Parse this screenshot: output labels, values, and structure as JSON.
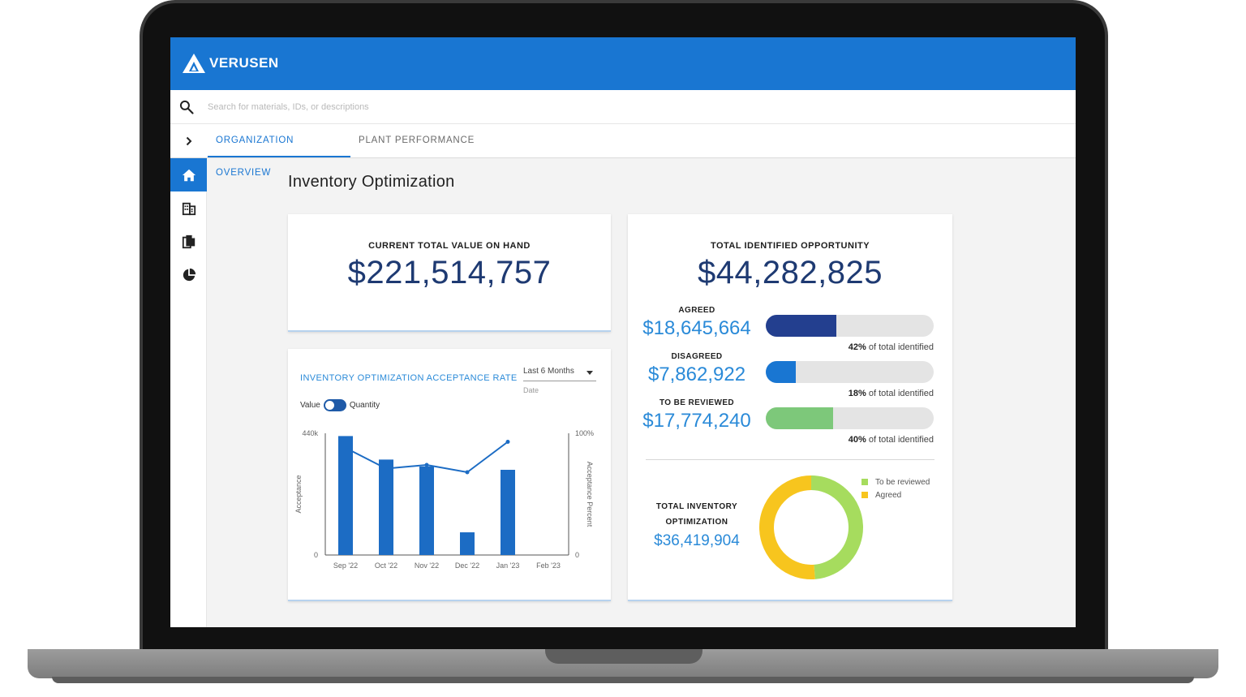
{
  "brand": {
    "name": "VERUSEN",
    "color": "#1976d2"
  },
  "search": {
    "placeholder": "Search for materials, IDs, or descriptions",
    "icon": "search-icon"
  },
  "tabs": [
    {
      "label": "ORGANIZATION OVERVIEW",
      "active": true
    },
    {
      "label": "PLANT PERFORMANCE",
      "active": false
    }
  ],
  "sidebar": {
    "items": [
      {
        "icon": "home-icon",
        "active": true
      },
      {
        "icon": "building-icon",
        "active": false
      },
      {
        "icon": "documents-icon",
        "active": false
      },
      {
        "icon": "pie-chart-icon",
        "active": false
      }
    ]
  },
  "page": {
    "title": "Inventory Optimization"
  },
  "value_card": {
    "label": "CURRENT TOTAL VALUE ON HAND",
    "value": "$221,514,757"
  },
  "opportunity": {
    "label": "TOTAL IDENTIFIED OPPORTUNITY",
    "value": "$44,282,825",
    "rows": [
      {
        "label": "AGREED",
        "value": "$18,645,664",
        "percent": 42,
        "percent_text": "42%",
        "note": " of total identified",
        "color": "#233f8f"
      },
      {
        "label": "DISAGREED",
        "value": "$7,862,922",
        "percent": 18,
        "percent_text": "18%",
        "note": " of total identified",
        "color": "#1976d2"
      },
      {
        "label": "TO BE REVIEWED",
        "value": "$17,774,240",
        "percent": 40,
        "percent_text": "40%",
        "note": " of total identified",
        "color": "#7dc87a"
      }
    ],
    "total_label_line1": "TOTAL INVENTORY",
    "total_label_line2": "OPTIMIZATION",
    "total_value": "$36,419,904",
    "legend": [
      {
        "label": "To be reviewed",
        "color": "#a6dc5e"
      },
      {
        "label": "Agreed",
        "color": "#f7c51e"
      }
    ]
  },
  "acceptance": {
    "title": "INVENTORY OPTIMIZATION ACCEPTANCE RATE",
    "range": {
      "value": "Last 6 Months",
      "caption": "Date"
    },
    "toggle": {
      "left": "Value",
      "right": "Quantity"
    }
  },
  "chart_data": [
    {
      "type": "bar",
      "categories": [
        "Sep '22",
        "Oct '22",
        "Nov '22",
        "Dec '22",
        "Jan '23",
        "Feb '23"
      ],
      "ylabel": "Acceptance",
      "y2label": "Acceptance Percent",
      "ylim": [
        0,
        440000
      ],
      "y2lim": [
        0,
        100
      ],
      "ytick_labels": [
        "0",
        "440k"
      ],
      "y2tick_labels": [
        "0",
        "100%"
      ],
      "series": [
        {
          "type": "bar",
          "axis": "left",
          "values": [
            430000,
            345000,
            320000,
            82000,
            308000,
            null
          ],
          "color": "#1c6cc4"
        },
        {
          "type": "line",
          "axis": "right",
          "values": [
            88,
            71,
            74,
            68,
            93,
            null
          ],
          "color": "#1c6cc4"
        }
      ]
    },
    {
      "type": "pie",
      "donut": true,
      "labels": [
        "To be reviewed",
        "Agreed"
      ],
      "values": [
        17774240,
        18645664
      ],
      "colors": [
        "#a6dc5e",
        "#f7c51e"
      ]
    }
  ]
}
